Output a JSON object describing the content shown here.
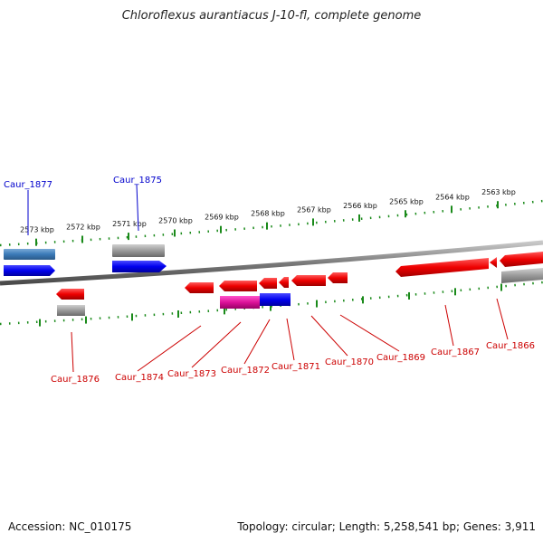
{
  "title": "Chloroflexus aurantiacus J-10-fl, complete genome",
  "footer": {
    "accession": "Accession: NC_010175",
    "summary": "Topology: circular; Length: 5,258,541 bp; Genes: 3,911"
  },
  "colors": {
    "forward_gene": "#0000ee",
    "forward_gene_alt": "#3a7ab8",
    "reverse_gene": "#ee0000",
    "highlight_gene": "#dd1199",
    "pseudo_gray": "#9a9a9a",
    "tick_green": "#1a8a1a",
    "label_blue": "#0000cc",
    "label_red": "#cc0000",
    "backbone": "#7a7a7a"
  },
  "scale_labels": [
    "2573 kbp",
    "2572 kbp",
    "2571 kbp",
    "2570 kbp",
    "2569 kbp",
    "2568 kbp",
    "2567 kbp",
    "2566 kbp",
    "2565 kbp",
    "2564 kbp",
    "2563 kbp"
  ],
  "genes": [
    {
      "id": "Caur_1877",
      "strand": "+"
    },
    {
      "id": "Caur_1875",
      "strand": "+"
    },
    {
      "id": "Caur_1876",
      "strand": "-"
    },
    {
      "id": "Caur_1874",
      "strand": "-"
    },
    {
      "id": "Caur_1873",
      "strand": "-"
    },
    {
      "id": "Caur_1872",
      "strand": "-"
    },
    {
      "id": "Caur_1871",
      "strand": "-"
    },
    {
      "id": "Caur_1870",
      "strand": "-"
    },
    {
      "id": "Caur_1869",
      "strand": "-"
    },
    {
      "id": "Caur_1867",
      "strand": "-"
    },
    {
      "id": "Caur_1866",
      "strand": "-"
    }
  ]
}
